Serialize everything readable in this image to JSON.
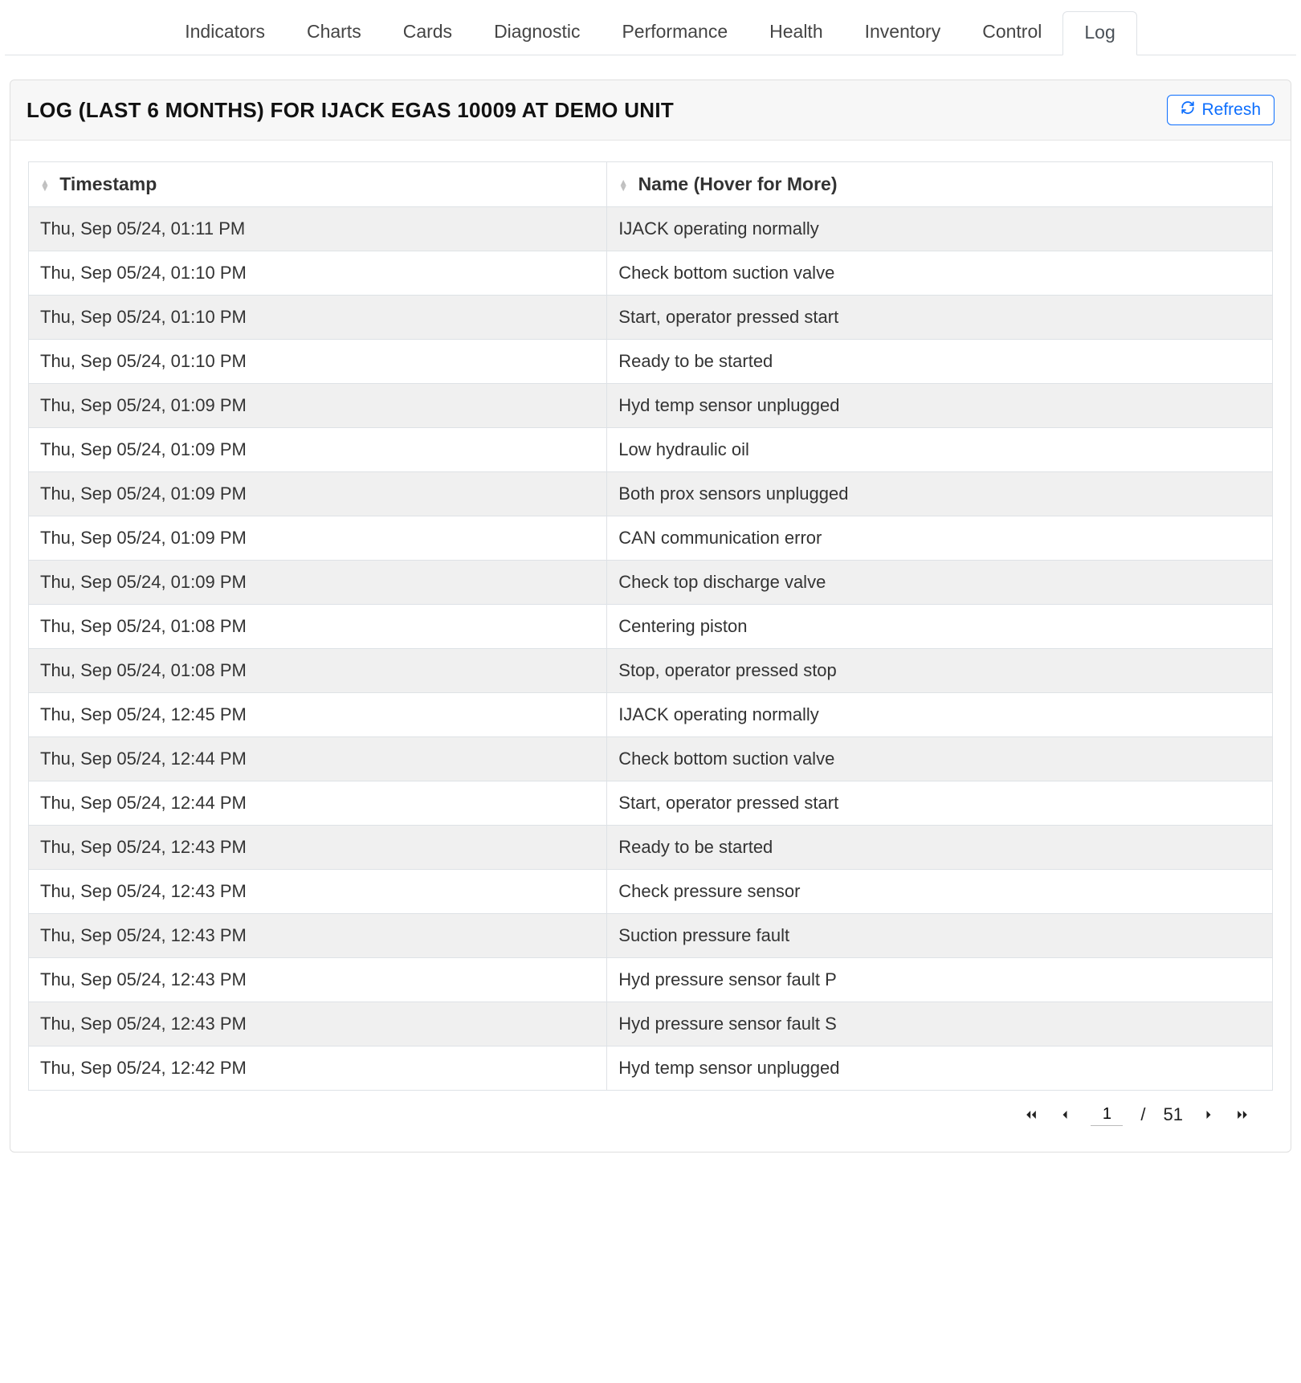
{
  "tabs": {
    "items": [
      {
        "label": "Indicators",
        "active": false
      },
      {
        "label": "Charts",
        "active": false
      },
      {
        "label": "Cards",
        "active": false
      },
      {
        "label": "Diagnostic",
        "active": false
      },
      {
        "label": "Performance",
        "active": false
      },
      {
        "label": "Health",
        "active": false
      },
      {
        "label": "Inventory",
        "active": false
      },
      {
        "label": "Control",
        "active": false
      },
      {
        "label": "Log",
        "active": true
      }
    ]
  },
  "panel": {
    "title": "LOG (LAST 6 MONTHS) FOR IJACK EGAS 10009 AT DEMO UNIT",
    "refresh_label": "Refresh"
  },
  "table": {
    "columns": [
      {
        "label": "Timestamp"
      },
      {
        "label": "Name (Hover for More)"
      }
    ],
    "rows": [
      [
        "Thu, Sep 05/24, 01:11 PM",
        "IJACK operating normally"
      ],
      [
        "Thu, Sep 05/24, 01:10 PM",
        "Check bottom suction valve"
      ],
      [
        "Thu, Sep 05/24, 01:10 PM",
        "Start, operator pressed start"
      ],
      [
        "Thu, Sep 05/24, 01:10 PM",
        "Ready to be started"
      ],
      [
        "Thu, Sep 05/24, 01:09 PM",
        "Hyd temp sensor unplugged"
      ],
      [
        "Thu, Sep 05/24, 01:09 PM",
        "Low hydraulic oil"
      ],
      [
        "Thu, Sep 05/24, 01:09 PM",
        "Both prox sensors unplugged"
      ],
      [
        "Thu, Sep 05/24, 01:09 PM",
        "CAN communication error"
      ],
      [
        "Thu, Sep 05/24, 01:09 PM",
        "Check top discharge valve"
      ],
      [
        "Thu, Sep 05/24, 01:08 PM",
        "Centering piston"
      ],
      [
        "Thu, Sep 05/24, 01:08 PM",
        "Stop, operator pressed stop"
      ],
      [
        "Thu, Sep 05/24, 12:45 PM",
        "IJACK operating normally"
      ],
      [
        "Thu, Sep 05/24, 12:44 PM",
        "Check bottom suction valve"
      ],
      [
        "Thu, Sep 05/24, 12:44 PM",
        "Start, operator pressed start"
      ],
      [
        "Thu, Sep 05/24, 12:43 PM",
        "Ready to be started"
      ],
      [
        "Thu, Sep 05/24, 12:43 PM",
        "Check pressure sensor"
      ],
      [
        "Thu, Sep 05/24, 12:43 PM",
        "Suction pressure fault"
      ],
      [
        "Thu, Sep 05/24, 12:43 PM",
        "Hyd pressure sensor fault P"
      ],
      [
        "Thu, Sep 05/24, 12:43 PM",
        "Hyd pressure sensor fault S"
      ],
      [
        "Thu, Sep 05/24, 12:42 PM",
        "Hyd temp sensor unplugged"
      ]
    ]
  },
  "pagination": {
    "current_page": "1",
    "separator": "/",
    "total_pages": "51"
  },
  "colors": {
    "accent": "#0d6efd",
    "border": "#dee2e6",
    "header_bg": "#f7f7f7",
    "row_stripe": "#f0f0f0",
    "text": "#333333"
  }
}
